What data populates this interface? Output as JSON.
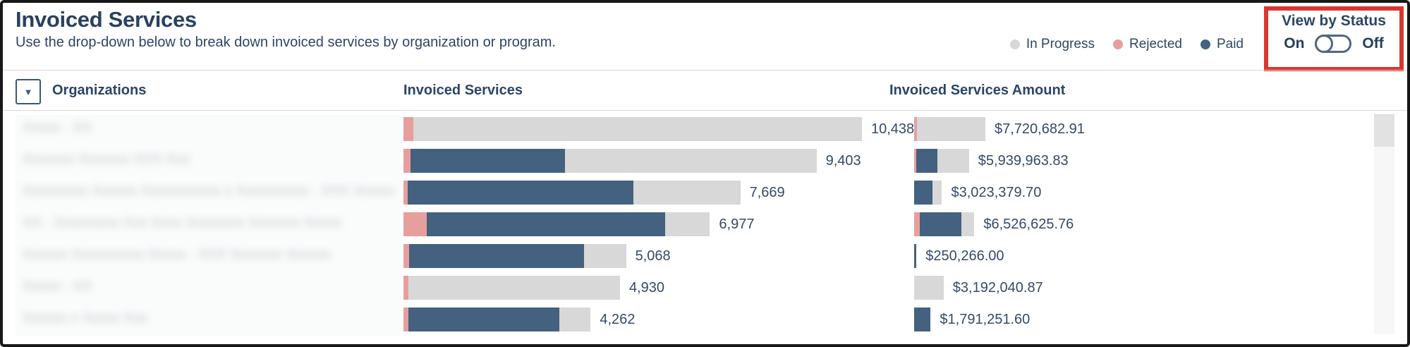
{
  "header": {
    "title": "Invoiced Services",
    "subtitle": "Use the drop-down below to break down invoiced services by organization or program."
  },
  "legend": {
    "items": [
      {
        "label": "In Progress",
        "color": "#d8d8d8"
      },
      {
        "label": "Rejected",
        "color": "#e79f9d"
      },
      {
        "label": "Paid",
        "color": "#44617f"
      }
    ]
  },
  "view_by_status": {
    "label": "View by Status",
    "on_label": "On",
    "off_label": "Off",
    "state": "off",
    "highlight_color": "#d8362e"
  },
  "table": {
    "dropdown_icon": "▼",
    "org_header": "Organizations",
    "services_header": "Invoiced Services",
    "amount_header": "Invoiced Services Amount"
  },
  "chart_data": {
    "type": "bar",
    "orientation": "horizontal",
    "stack_order": [
      "Rejected",
      "Paid",
      "In Progress"
    ],
    "colors": {
      "Rejected": "#e79f9d",
      "Paid": "#44617f",
      "In Progress": "#d8d8d8"
    },
    "services_axis_max": 10438,
    "amount_axis_max": 7720682.91,
    "rows": [
      {
        "org_placeholder": "Xxxxx - XX",
        "services_total": 10438,
        "services_label": "10,438",
        "services_pct": {
          "rejected": 2.2,
          "paid": 0,
          "in_progress": 97.8
        },
        "amount_value": 7720682.91,
        "amount_label": "$7,720,682.91",
        "amount_pct": {
          "rejected": 4.0,
          "paid": 0,
          "in_progress": 96.0
        }
      },
      {
        "org_placeholder": "Xxxxxxx Xxxxxxx XXX Xxx",
        "services_total": 9403,
        "services_label": "9,403",
        "services_pct": {
          "rejected": 1.7,
          "paid": 37.4,
          "in_progress": 60.9
        },
        "amount_value": 5939963.83,
        "amount_label": "$5,939,963.83",
        "amount_pct": {
          "rejected": 3.8,
          "paid": 38.2,
          "in_progress": 58.0
        }
      },
      {
        "org_placeholder": "Xxxxxxxxx Xxxxxx Xxxxxxxxxxx x Xxxxxxxxxx - XXX Xxxxxx",
        "services_total": 7669,
        "services_label": "7,669",
        "services_pct": {
          "rejected": 1.3,
          "paid": 66.9,
          "in_progress": 31.8
        },
        "amount_value": 3023379.7,
        "amount_label": "$3,023,379.70",
        "amount_pct": {
          "rejected": 0,
          "paid": 65.0,
          "in_progress": 35.0
        }
      },
      {
        "org_placeholder": "XX - Xxxxxxxxx Xxx Xxxx Xxxxxxxx Xxxxxxx Xxxxx",
        "services_total": 6977,
        "services_label": "6,977",
        "services_pct": {
          "rejected": 7.6,
          "paid": 77.8,
          "in_progress": 14.6
        },
        "amount_value": 6526625.76,
        "amount_label": "$6,526,625.76",
        "amount_pct": {
          "rejected": 9.6,
          "paid": 68.7,
          "in_progress": 21.7
        }
      },
      {
        "org_placeholder": "Xxxxxx Xxxxxxxxxx Xxxxx - XXX Xxxxxxx Xxxxxx",
        "services_total": 5068,
        "services_label": "5,068",
        "services_pct": {
          "rejected": 2.5,
          "paid": 78.7,
          "in_progress": 18.8
        },
        "amount_value": 250266.0,
        "amount_label": "$250,266.00",
        "amount_pct": {
          "rejected": 0,
          "paid": 100,
          "in_progress": 0
        }
      },
      {
        "org_placeholder": "Xxxxx - XX",
        "services_total": 4930,
        "services_label": "4,930",
        "services_pct": {
          "rejected": 2.3,
          "paid": 0,
          "in_progress": 97.7
        },
        "amount_value": 3192040.87,
        "amount_label": "$3,192,040.87",
        "amount_pct": {
          "rejected": 0,
          "paid": 0,
          "in_progress": 100
        }
      },
      {
        "org_placeholder": "Xxxxxx x Xxxxx Xxx",
        "services_total": 4262,
        "services_label": "4,262",
        "services_pct": {
          "rejected": 2.7,
          "paid": 80.6,
          "in_progress": 16.7
        },
        "amount_value": 1791251.6,
        "amount_label": "$1,791,251.60",
        "amount_pct": {
          "rejected": 0,
          "paid": 100,
          "in_progress": 0
        }
      }
    ]
  }
}
